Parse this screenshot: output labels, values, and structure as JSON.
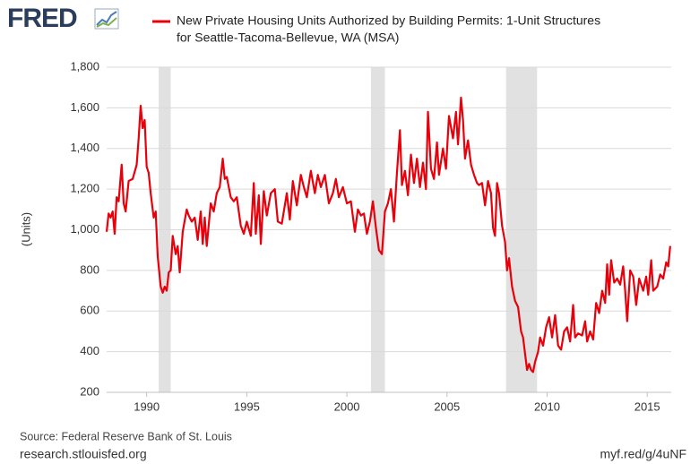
{
  "logo": "FRED",
  "chart_data": {
    "type": "line",
    "title": [
      "New Private Housing Units Authorized by Building Permits: 1-Unit Structures",
      "for Seattle-Tacoma-Bellevue, WA (MSA)"
    ],
    "y_label": "(Units)",
    "source": "Source: Federal Reserve Bank of St. Louis",
    "site": "research.stlouisfed.org",
    "short_link": "myf.red/g/4uNF",
    "grid": true,
    "recession_color": "#e1e1e1",
    "recessions": [
      [
        1990.6,
        1991.2
      ],
      [
        2001.2,
        2001.9
      ],
      [
        2007.95,
        2009.5
      ]
    ],
    "xlim": [
      1988,
      2016.2
    ],
    "xticks": [
      1990,
      1995,
      2000,
      2005,
      2010,
      2015
    ],
    "ylim": [
      200,
      1800
    ],
    "yticks": [
      200,
      400,
      600,
      800,
      {
        "value": 1000,
        "label": "1,000"
      },
      {
        "value": 1200,
        "label": "1,200"
      },
      {
        "value": 1400,
        "label": "1,400"
      },
      {
        "value": 1600,
        "label": "1,600"
      },
      {
        "value": 1800,
        "label": "1,800"
      }
    ],
    "series": [
      {
        "color": "#e8000b",
        "x": [
          1988.0,
          1988.1,
          1988.2,
          1988.3,
          1988.4,
          1988.5,
          1988.6,
          1988.75,
          1988.85,
          1988.95,
          1989.1,
          1989.3,
          1989.5,
          1989.6,
          1989.7,
          1989.8,
          1989.9,
          1990.0,
          1990.1,
          1990.2,
          1990.35,
          1990.45,
          1990.55,
          1990.7,
          1990.8,
          1990.9,
          1991.0,
          1991.1,
          1991.2,
          1991.3,
          1991.45,
          1991.55,
          1991.65,
          1991.8,
          1992.0,
          1992.1,
          1992.25,
          1992.4,
          1992.55,
          1992.7,
          1992.8,
          1992.9,
          1993.0,
          1993.2,
          1993.35,
          1993.5,
          1993.65,
          1993.8,
          1993.9,
          1994.0,
          1994.2,
          1994.35,
          1994.5,
          1994.7,
          1994.85,
          1995.0,
          1995.2,
          1995.35,
          1995.45,
          1995.6,
          1995.7,
          1995.85,
          1996.0,
          1996.2,
          1996.4,
          1996.55,
          1996.75,
          1997.0,
          1997.15,
          1997.3,
          1997.5,
          1997.7,
          1997.85,
          1998.0,
          1998.2,
          1998.4,
          1998.55,
          1998.7,
          1998.9,
          1999.1,
          1999.3,
          1999.45,
          1999.6,
          1999.8,
          2000.0,
          2000.2,
          2000.4,
          2000.55,
          2000.7,
          2000.85,
          2001.0,
          2001.15,
          2001.3,
          2001.45,
          2001.6,
          2001.75,
          2001.9,
          2002.05,
          2002.2,
          2002.35,
          2002.5,
          2002.65,
          2002.75,
          2002.9,
          2003.05,
          2003.2,
          2003.35,
          2003.5,
          2003.65,
          2003.8,
          2003.95,
          2004.05,
          2004.2,
          2004.35,
          2004.5,
          2004.6,
          2004.8,
          2004.95,
          2005.1,
          2005.3,
          2005.45,
          2005.55,
          2005.7,
          2005.8,
          2005.9,
          2006.05,
          2006.2,
          2006.35,
          2006.5,
          2006.6,
          2006.75,
          2006.9,
          2007.05,
          2007.2,
          2007.3,
          2007.4,
          2007.5,
          2007.6,
          2007.75,
          2007.9,
          2008.0,
          2008.1,
          2008.25,
          2008.4,
          2008.55,
          2008.7,
          2008.8,
          2008.9,
          2009.0,
          2009.1,
          2009.2,
          2009.3,
          2009.4,
          2009.55,
          2009.65,
          2009.8,
          2009.95,
          2010.1,
          2010.25,
          2010.4,
          2010.55,
          2010.7,
          2010.85,
          2011.0,
          2011.15,
          2011.3,
          2011.4,
          2011.55,
          2011.75,
          2011.9,
          2012.0,
          2012.15,
          2012.3,
          2012.45,
          2012.6,
          2012.75,
          2012.9,
          2013.0,
          2013.1,
          2013.2,
          2013.35,
          2013.5,
          2013.65,
          2013.8,
          2013.9,
          2014.0,
          2014.15,
          2014.3,
          2014.45,
          2014.6,
          2014.8,
          2014.95,
          2015.05,
          2015.2,
          2015.3,
          2015.5,
          2015.65,
          2015.8,
          2015.95,
          2016.05,
          2016.15
        ],
        "values": [
          990,
          1080,
          1060,
          1090,
          980,
          1160,
          1140,
          1320,
          1130,
          1090,
          1240,
          1250,
          1320,
          1450,
          1610,
          1500,
          1540,
          1310,
          1280,
          1180,
          1060,
          1090,
          870,
          720,
          690,
          720,
          700,
          790,
          800,
          970,
          880,
          920,
          790,
          990,
          1100,
          1070,
          1040,
          1060,
          950,
          1090,
          930,
          1060,
          920,
          1130,
          1090,
          1180,
          1210,
          1350,
          1250,
          1260,
          1160,
          1140,
          1160,
          1020,
          980,
          1040,
          970,
          1230,
          980,
          1170,
          930,
          1190,
          1070,
          1180,
          1200,
          1040,
          1030,
          1180,
          1050,
          1240,
          1120,
          1270,
          1210,
          1160,
          1290,
          1180,
          1270,
          1210,
          1270,
          1130,
          1180,
          1250,
          1160,
          1210,
          1130,
          1140,
          990,
          1100,
          1070,
          1080,
          980,
          1040,
          1140,
          1010,
          900,
          880,
          1090,
          1130,
          1200,
          1040,
          1280,
          1490,
          1220,
          1290,
          1170,
          1370,
          1230,
          1350,
          1210,
          1330,
          1200,
          1580,
          1300,
          1250,
          1430,
          1270,
          1400,
          1300,
          1560,
          1450,
          1580,
          1420,
          1650,
          1540,
          1350,
          1440,
          1320,
          1270,
          1230,
          1220,
          1230,
          1120,
          1240,
          1180,
          1010,
          970,
          1230,
          1180,
          1020,
          940,
          800,
          860,
          720,
          650,
          620,
          500,
          470,
          390,
          310,
          340,
          310,
          300,
          350,
          400,
          470,
          430,
          520,
          570,
          470,
          580,
          430,
          410,
          500,
          520,
          450,
          630,
          470,
          490,
          480,
          550,
          450,
          500,
          460,
          640,
          590,
          700,
          640,
          830,
          680,
          850,
          740,
          760,
          730,
          820,
          700,
          550,
          800,
          770,
          630,
          760,
          700,
          770,
          680,
          850,
          700,
          720,
          780,
          760,
          840,
          820,
          920
        ]
      }
    ]
  }
}
